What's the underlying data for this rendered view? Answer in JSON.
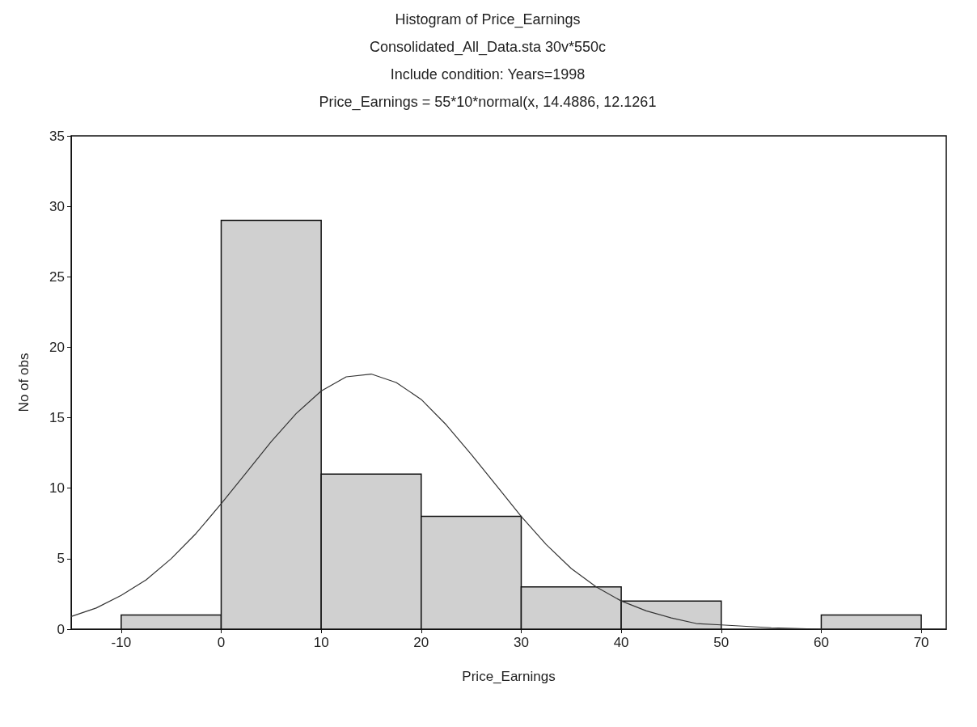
{
  "chart_data": {
    "type": "histogram",
    "title": "Histogram of Price_Earnings",
    "subtitle": "Consolidated_All_Data.sta 30v*550c",
    "annotations": [
      "Include condition: Years=1998",
      "Price_Earnings = 55*10*normal(x, 14.4886, 12.1261"
    ],
    "xlabel": "Price_Earnings",
    "ylabel": "No of obs",
    "bins": [
      -10,
      0,
      10,
      20,
      30,
      40,
      50,
      60,
      70
    ],
    "values": [
      1,
      29,
      11,
      8,
      3,
      2,
      0,
      1
    ],
    "color": "#d0d0d0",
    "series": [
      {
        "type": "line",
        "color": "#333333",
        "x": [
          -15,
          -12.5,
          -10,
          -7.5,
          -5,
          -2.5,
          0,
          2.5,
          5,
          7.5,
          10,
          12.5,
          15,
          17.5,
          20,
          22.5,
          25,
          27.5,
          30,
          32.5,
          35,
          37.5,
          40,
          42.5,
          45,
          47.5,
          50,
          55,
          60,
          65,
          72.5
        ],
        "values": [
          0.9,
          1.5,
          2.4,
          3.5,
          5.0,
          6.8,
          8.9,
          11.1,
          13.3,
          15.3,
          16.9,
          17.9,
          18.1,
          17.5,
          16.3,
          14.5,
          12.4,
          10.2,
          8.0,
          6.0,
          4.3,
          3.0,
          2.0,
          1.3,
          0.8,
          0.4,
          0.3,
          0.1,
          0,
          0,
          0
        ]
      }
    ],
    "xlim": [
      -15,
      72.5
    ],
    "xticks": [
      -10,
      0,
      10,
      20,
      30,
      40,
      50,
      60,
      70
    ],
    "ylim": [
      0,
      35
    ],
    "yticks": [
      0,
      5,
      10,
      15,
      20,
      25,
      30,
      35
    ],
    "grid": false,
    "marker": "none",
    "line_style": "solid"
  }
}
